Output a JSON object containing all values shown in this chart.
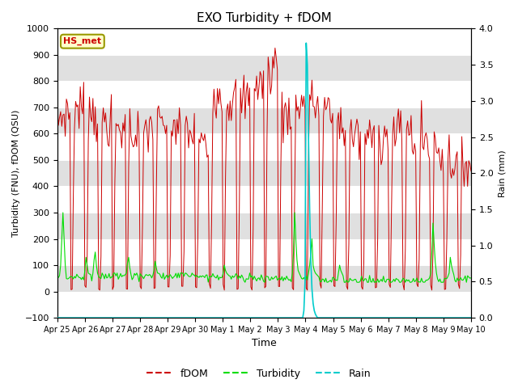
{
  "title": "EXO Turbidity + fDOM",
  "ylabel_left": "Turbidity (FNU), fDOM (QSU)",
  "ylabel_right": "Rain (mm)",
  "xlabel": "Time",
  "ylim_left": [
    -100,
    1000
  ],
  "ylim_right": [
    0.0,
    4.0
  ],
  "fdom_color": "#cc0000",
  "turbidity_color": "#00dd00",
  "rain_color": "#00cccc",
  "background_color": "#ffffff",
  "plot_bg_color": "#e0e0e0",
  "label_box_text": "HS_met",
  "label_box_facecolor": "#ffffcc",
  "label_box_edgecolor": "#999900",
  "legend_fdom": "fDOM",
  "legend_turbidity": "Turbidity",
  "legend_rain": "Rain",
  "xticklabels": [
    "Apr 25",
    "Apr 26",
    "Apr 27",
    "Apr 28",
    "Apr 29",
    "Apr 30",
    "May 1",
    "May 2",
    "May 3",
    "May 4",
    "May 5",
    "May 6",
    "May 7",
    "May 8",
    "May 9",
    "May 10"
  ],
  "yticks_left": [
    -100,
    0,
    100,
    200,
    300,
    400,
    500,
    600,
    700,
    800,
    900,
    1000
  ],
  "yticks_right": [
    0.0,
    0.5,
    1.0,
    1.5,
    2.0,
    2.5,
    3.0,
    3.5,
    4.0
  ]
}
